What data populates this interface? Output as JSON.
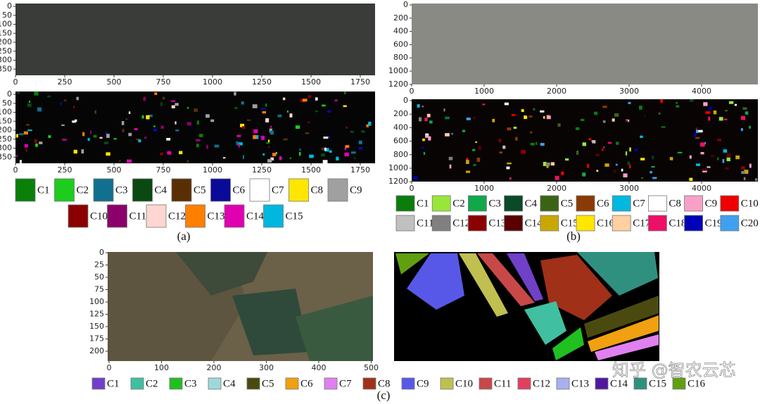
{
  "panels": [
    {
      "caption": "(a)",
      "images": [
        {
          "xticks": [
            0,
            250,
            500,
            750,
            1000,
            1250,
            1500,
            1750
          ],
          "yticks": [
            0,
            50,
            100,
            150,
            200,
            250,
            300,
            350
          ]
        },
        {
          "xticks": [
            0,
            250,
            500,
            750,
            1000,
            1250,
            1500,
            1750
          ],
          "yticks": [
            0,
            50,
            100,
            150,
            200,
            250,
            300,
            350
          ]
        }
      ],
      "legend": [
        {
          "label": "C1",
          "color": "#0a7f0a"
        },
        {
          "label": "C2",
          "color": "#1ecc1e"
        },
        {
          "label": "C3",
          "color": "#11708f"
        },
        {
          "label": "C4",
          "color": "#0a4a12"
        },
        {
          "label": "C5",
          "color": "#5a2e05"
        },
        {
          "label": "C6",
          "color": "#0a0a99"
        },
        {
          "label": "C7",
          "color": "#ffffff"
        },
        {
          "label": "C8",
          "color": "#ffe600"
        },
        {
          "label": "C9",
          "color": "#a0a0a0"
        },
        {
          "label": "C10",
          "color": "#8b0000"
        },
        {
          "label": "C11",
          "color": "#8b006b"
        },
        {
          "label": "C12",
          "color": "#ffd6d0"
        },
        {
          "label": "C13",
          "color": "#ff7f00"
        },
        {
          "label": "C14",
          "color": "#e000b0"
        },
        {
          "label": "C15",
          "color": "#00b7e0"
        }
      ]
    },
    {
      "caption": "(b)",
      "images": [
        {
          "xticks": [
            0,
            1000,
            2000,
            3000,
            4000
          ],
          "yticks": [
            0,
            200,
            400,
            600,
            800,
            1000,
            1200
          ]
        },
        {
          "xticks": [
            0,
            1000,
            2000,
            3000,
            4000
          ],
          "yticks": [
            0,
            200,
            400,
            600,
            800,
            1000,
            1200
          ]
        }
      ],
      "legend": [
        {
          "label": "C1",
          "color": "#0a7d0a"
        },
        {
          "label": "C2",
          "color": "#99e63a"
        },
        {
          "label": "C3",
          "color": "#10a84a"
        },
        {
          "label": "C4",
          "color": "#0a4a28"
        },
        {
          "label": "C5",
          "color": "#3a6414"
        },
        {
          "label": "C6",
          "color": "#8a3a05"
        },
        {
          "label": "C7",
          "color": "#00b8e0"
        },
        {
          "label": "C8",
          "color": "#ffffff"
        },
        {
          "label": "C9",
          "color": "#f9a0c8"
        },
        {
          "label": "C10",
          "color": "#ee0000"
        },
        {
          "label": "C11",
          "color": "#c0c0c0"
        },
        {
          "label": "C12",
          "color": "#808080"
        },
        {
          "label": "C13",
          "color": "#8b0000"
        },
        {
          "label": "C14",
          "color": "#5a0000"
        },
        {
          "label": "C15",
          "color": "#c8a800"
        },
        {
          "label": "C16",
          "color": "#ffe600"
        },
        {
          "label": "C17",
          "color": "#ffd0a0"
        },
        {
          "label": "C18",
          "color": "#ee1068"
        },
        {
          "label": "C19",
          "color": "#0000b8"
        },
        {
          "label": "C20",
          "color": "#40a0f0"
        }
      ]
    },
    {
      "caption": "(c)",
      "images": [
        {
          "xticks": [
            0,
            100,
            200,
            300,
            400,
            500
          ],
          "yticks": [
            0,
            25,
            50,
            75,
            100,
            125,
            150,
            175,
            200
          ]
        }
      ],
      "legend": [
        {
          "label": "C1",
          "color": "#7040c8"
        },
        {
          "label": "C2",
          "color": "#40c0a0"
        },
        {
          "label": "C3",
          "color": "#20c020"
        },
        {
          "label": "C4",
          "color": "#a0d8d8"
        },
        {
          "label": "C5",
          "color": "#4a4a10"
        },
        {
          "label": "C6",
          "color": "#f0a010"
        },
        {
          "label": "C7",
          "color": "#e080f0"
        },
        {
          "label": "C8",
          "color": "#a03018"
        },
        {
          "label": "C9",
          "color": "#5858e8"
        },
        {
          "label": "C10",
          "color": "#c0c050"
        },
        {
          "label": "C11",
          "color": "#c84848"
        },
        {
          "label": "C12",
          "color": "#e04060"
        },
        {
          "label": "C13",
          "color": "#a8b0f0"
        },
        {
          "label": "C14",
          "color": "#5018a0"
        },
        {
          "label": "C15",
          "color": "#309080"
        },
        {
          "label": "C16",
          "color": "#60a010"
        }
      ]
    }
  ],
  "watermark": "知乎 @智农云芯"
}
